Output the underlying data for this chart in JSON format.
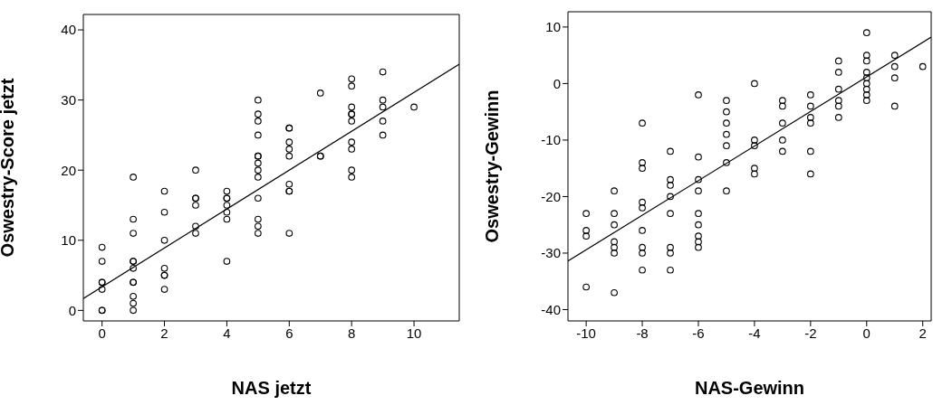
{
  "chart_data": [
    {
      "type": "scatter",
      "xlabel": "NAS jetzt",
      "ylabel": "Oswestry-Score jetzt",
      "xlim": [
        -0.6,
        11.45
      ],
      "ylim": [
        -1.5,
        42.2
      ],
      "xticks": [
        0,
        2,
        4,
        6,
        8,
        10
      ],
      "yticks": [
        0,
        10,
        20,
        30,
        40
      ],
      "series": [
        {
          "color": "#000000",
          "marker": "circle",
          "x": [
            0,
            0,
            0,
            0,
            0,
            0,
            0,
            1,
            1,
            1,
            1,
            1,
            1,
            1,
            1,
            1,
            1,
            1,
            2,
            2,
            2,
            2,
            2,
            2,
            2,
            3,
            3,
            3,
            3,
            3,
            3,
            4,
            4,
            4,
            4,
            4,
            4,
            4,
            5,
            5,
            5,
            5,
            5,
            5,
            5,
            5,
            5,
            5,
            5,
            5,
            5,
            6,
            6,
            6,
            6,
            6,
            6,
            6,
            6,
            6,
            7,
            7,
            7,
            8,
            8,
            8,
            8,
            8,
            8,
            8,
            8,
            8,
            8,
            9,
            9,
            9,
            9,
            9,
            10
          ],
          "values": [
            0,
            0,
            3,
            4,
            4,
            7,
            9,
            19,
            13,
            11,
            7,
            7,
            6,
            4,
            4,
            2,
            1,
            0,
            17,
            14,
            10,
            6,
            5,
            5,
            3,
            20,
            16,
            16,
            15,
            12,
            11,
            17,
            16,
            16,
            15,
            14,
            13,
            7,
            30,
            28,
            27,
            25,
            22,
            22,
            21,
            20,
            19,
            16,
            13,
            12,
            11,
            26,
            26,
            24,
            23,
            22,
            18,
            17,
            17,
            11,
            31,
            22,
            22,
            33,
            32,
            29,
            28,
            28,
            27,
            24,
            23,
            20,
            19,
            34,
            30,
            29,
            27,
            25,
            29
          ]
        },
        {
          "type": "line",
          "color": "#000000",
          "marker": "none",
          "x": [
            -0.6,
            11.45
          ],
          "values": [
            1.7,
            35.1
          ]
        }
      ]
    },
    {
      "type": "scatter",
      "xlabel": "NAS-Gewinn",
      "ylabel": "Oswestry-Gewinn",
      "xlim": [
        -10.65,
        2.3
      ],
      "ylim": [
        -42,
        12.7
      ],
      "xticks": [
        -10,
        -8,
        -6,
        -4,
        -2,
        0,
        2
      ],
      "yticks": [
        -40,
        -30,
        -20,
        -10,
        0,
        10
      ],
      "series": [
        {
          "color": "#000000",
          "marker": "circle",
          "x": [
            -10,
            -10,
            -10,
            -10,
            -9,
            -9,
            -9,
            -9,
            -9,
            -9,
            -9,
            -8,
            -8,
            -8,
            -8,
            -8,
            -8,
            -8,
            -8,
            -8,
            -7,
            -7,
            -7,
            -7,
            -7,
            -7,
            -7,
            -7,
            -6,
            -6,
            -6,
            -6,
            -6,
            -6,
            -6,
            -6,
            -6,
            -5,
            -5,
            -5,
            -5,
            -5,
            -5,
            -5,
            -4,
            -4,
            -4,
            -4,
            -4,
            -3,
            -3,
            -3,
            -3,
            -3,
            -2,
            -2,
            -2,
            -2,
            -2,
            -2,
            -1,
            -1,
            -1,
            -1,
            -1,
            -1,
            0,
            0,
            0,
            0,
            0,
            0,
            0,
            0,
            0,
            1,
            1,
            1,
            1,
            2
          ],
          "values": [
            -23,
            -26,
            -27,
            -36,
            -19,
            -23,
            -25,
            -28,
            -29,
            -30,
            -37,
            -7,
            -14,
            -15,
            -21,
            -22,
            -26,
            -29,
            -30,
            -33,
            -12,
            -17,
            -18,
            -20,
            -23,
            -29,
            -30,
            -33,
            -2,
            -13,
            -17,
            -19,
            -23,
            -25,
            -27,
            -28,
            -29,
            -3,
            -5,
            -7,
            -9,
            -11,
            -14,
            -19,
            0,
            -10,
            -11,
            -15,
            -16,
            -3,
            -4,
            -7,
            -10,
            -12,
            -2,
            -4,
            -6,
            -7,
            -12,
            -16,
            4,
            2,
            -1,
            -3,
            -4,
            -6,
            9,
            5,
            4,
            2,
            1,
            0,
            -1,
            -2,
            -3,
            5,
            3,
            1,
            -4,
            3
          ]
        },
        {
          "type": "line",
          "color": "#000000",
          "marker": "none",
          "x": [
            -10.65,
            2.3
          ],
          "values": [
            -31.4,
            8.2
          ]
        }
      ]
    }
  ]
}
